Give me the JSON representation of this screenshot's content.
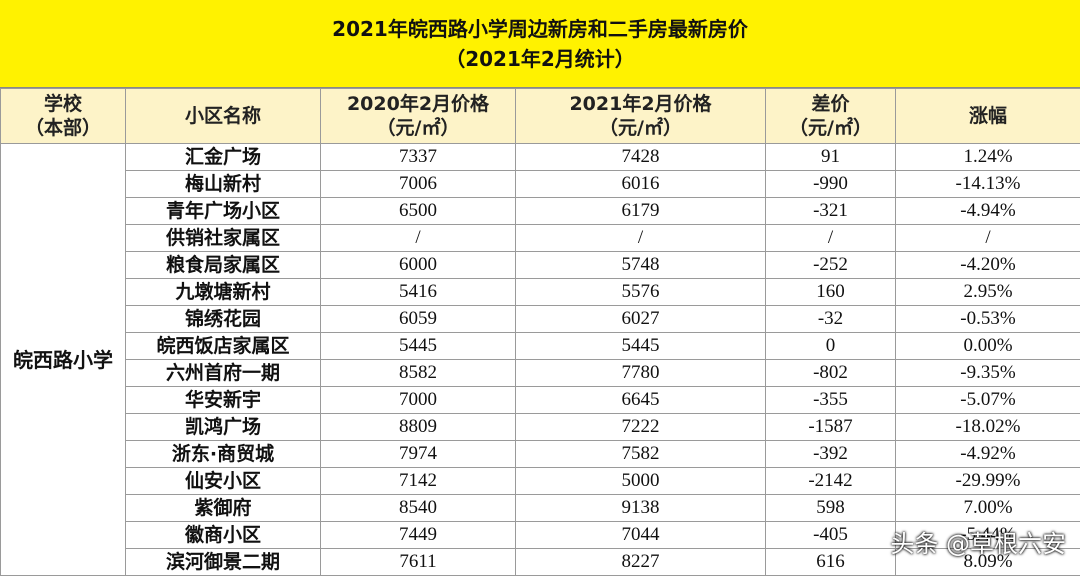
{
  "title": {
    "line1": "2021年皖西路小学周边新房和二手房最新房价",
    "line2": "（2021年2月统计）"
  },
  "table": {
    "header": [
      [
        "学校",
        "（本部）"
      ],
      [
        "小区名称"
      ],
      [
        "2020年2月价格",
        "（元/㎡）"
      ],
      [
        "2021年2月价格",
        "（元/㎡）"
      ],
      [
        "差价",
        "（元/㎡）"
      ],
      [
        "涨幅"
      ]
    ],
    "school": "皖西路小学",
    "rows": [
      [
        "汇金广场",
        "7337",
        "7428",
        "91",
        "1.24%"
      ],
      [
        "梅山新村",
        "7006",
        "6016",
        "-990",
        "-14.13%"
      ],
      [
        "青年广场小区",
        "6500",
        "6179",
        "-321",
        "-4.94%"
      ],
      [
        "供销社家属区",
        "/",
        "/",
        "/",
        "/"
      ],
      [
        "粮食局家属区",
        "6000",
        "5748",
        "-252",
        "-4.20%"
      ],
      [
        "九墩塘新村",
        "5416",
        "5576",
        "160",
        "2.95%"
      ],
      [
        "锦绣花园",
        "6059",
        "6027",
        "-32",
        "-0.53%"
      ],
      [
        "皖西饭店家属区",
        "5445",
        "5445",
        "0",
        "0.00%"
      ],
      [
        "六州首府一期",
        "8582",
        "7780",
        "-802",
        "-9.35%"
      ],
      [
        "华安新宇",
        "7000",
        "6645",
        "-355",
        "-5.07%"
      ],
      [
        "凯鸿广场",
        "8809",
        "7222",
        "-1587",
        "-18.02%"
      ],
      [
        "浙东·商贸城",
        "7974",
        "7582",
        "-392",
        "-4.92%"
      ],
      [
        "仙安小区",
        "7142",
        "5000",
        "-2142",
        "-29.99%"
      ],
      [
        "紫御府",
        "8540",
        "9138",
        "598",
        "7.00%"
      ],
      [
        "徽商小区",
        "7449",
        "7044",
        "-405",
        "-5.44%"
      ],
      [
        "滨河御景二期",
        "7611",
        "8227",
        "616",
        "8.09%"
      ]
    ]
  },
  "watermark": "头条 @草根六安"
}
